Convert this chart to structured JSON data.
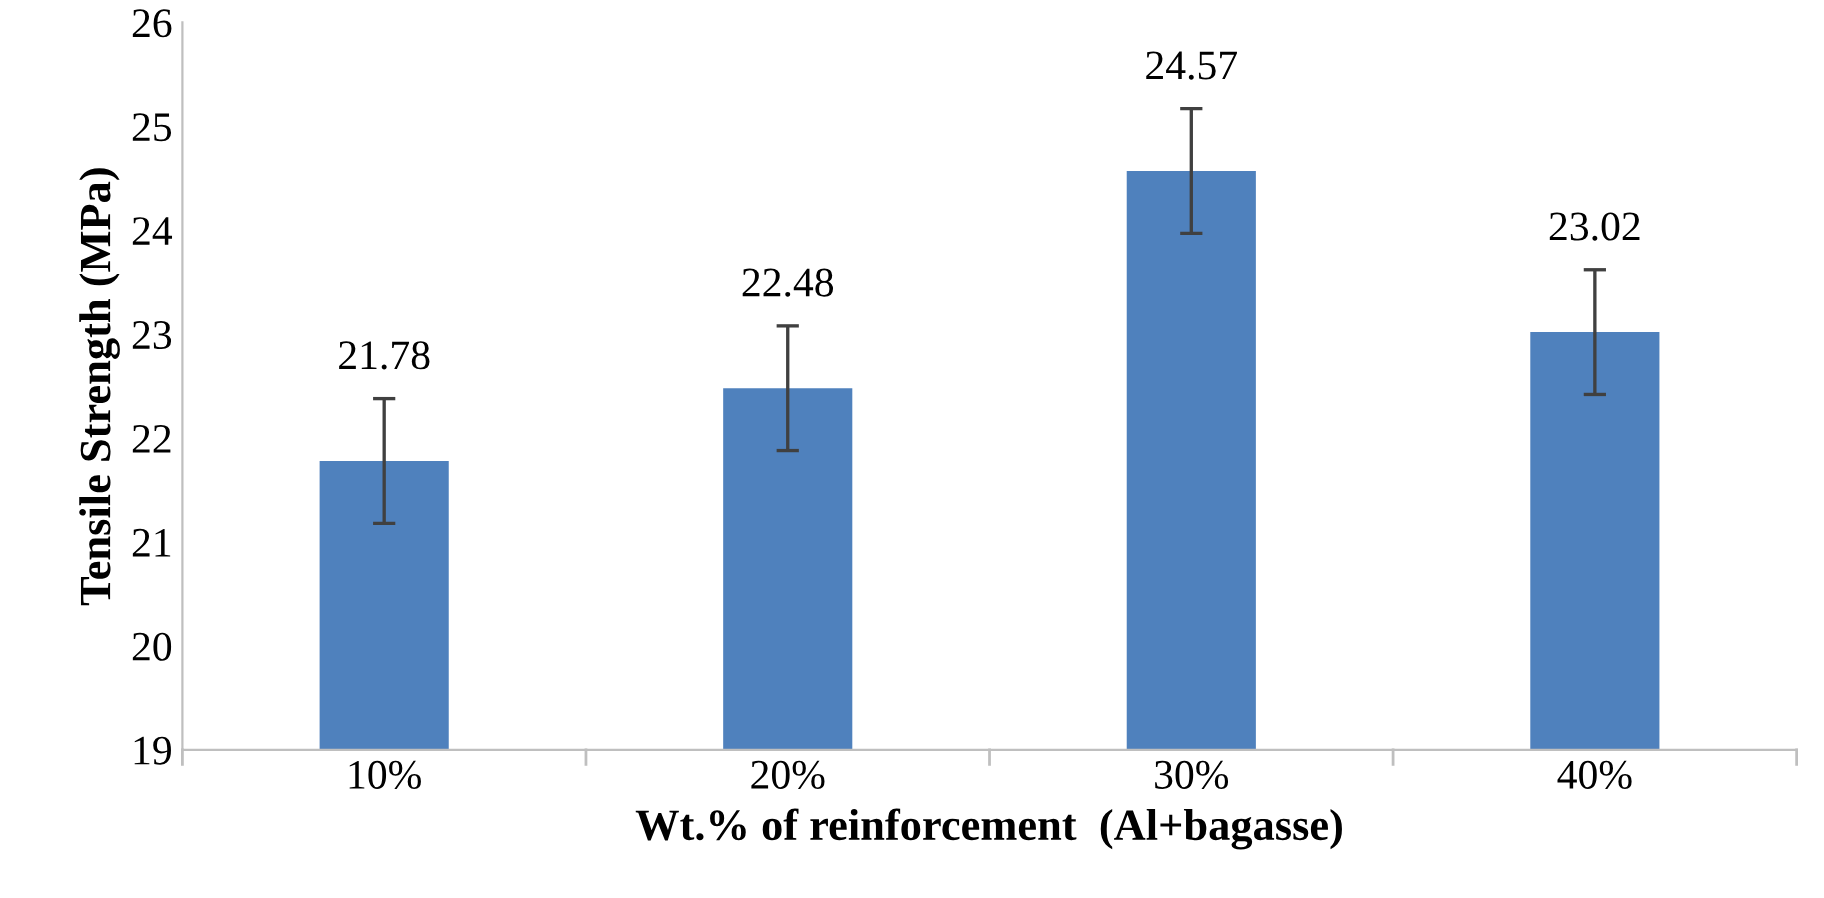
{
  "chart_data": {
    "type": "bar",
    "xlabel": "Wt.% of reinforcement  (Al+bagasse)",
    "ylabel": "Tensile Strength (MPa)",
    "categories": [
      "10%",
      "20%",
      "30%",
      "40%"
    ],
    "values": [
      21.78,
      22.48,
      24.57,
      23.02
    ],
    "errors": [
      0.6,
      0.6,
      0.6,
      0.6
    ],
    "color": "#4f81bd",
    "ylim": [
      19,
      26
    ],
    "yticks": [
      19,
      20,
      21,
      22,
      23,
      24,
      25,
      26
    ],
    "data_labels": true,
    "grid": false
  }
}
